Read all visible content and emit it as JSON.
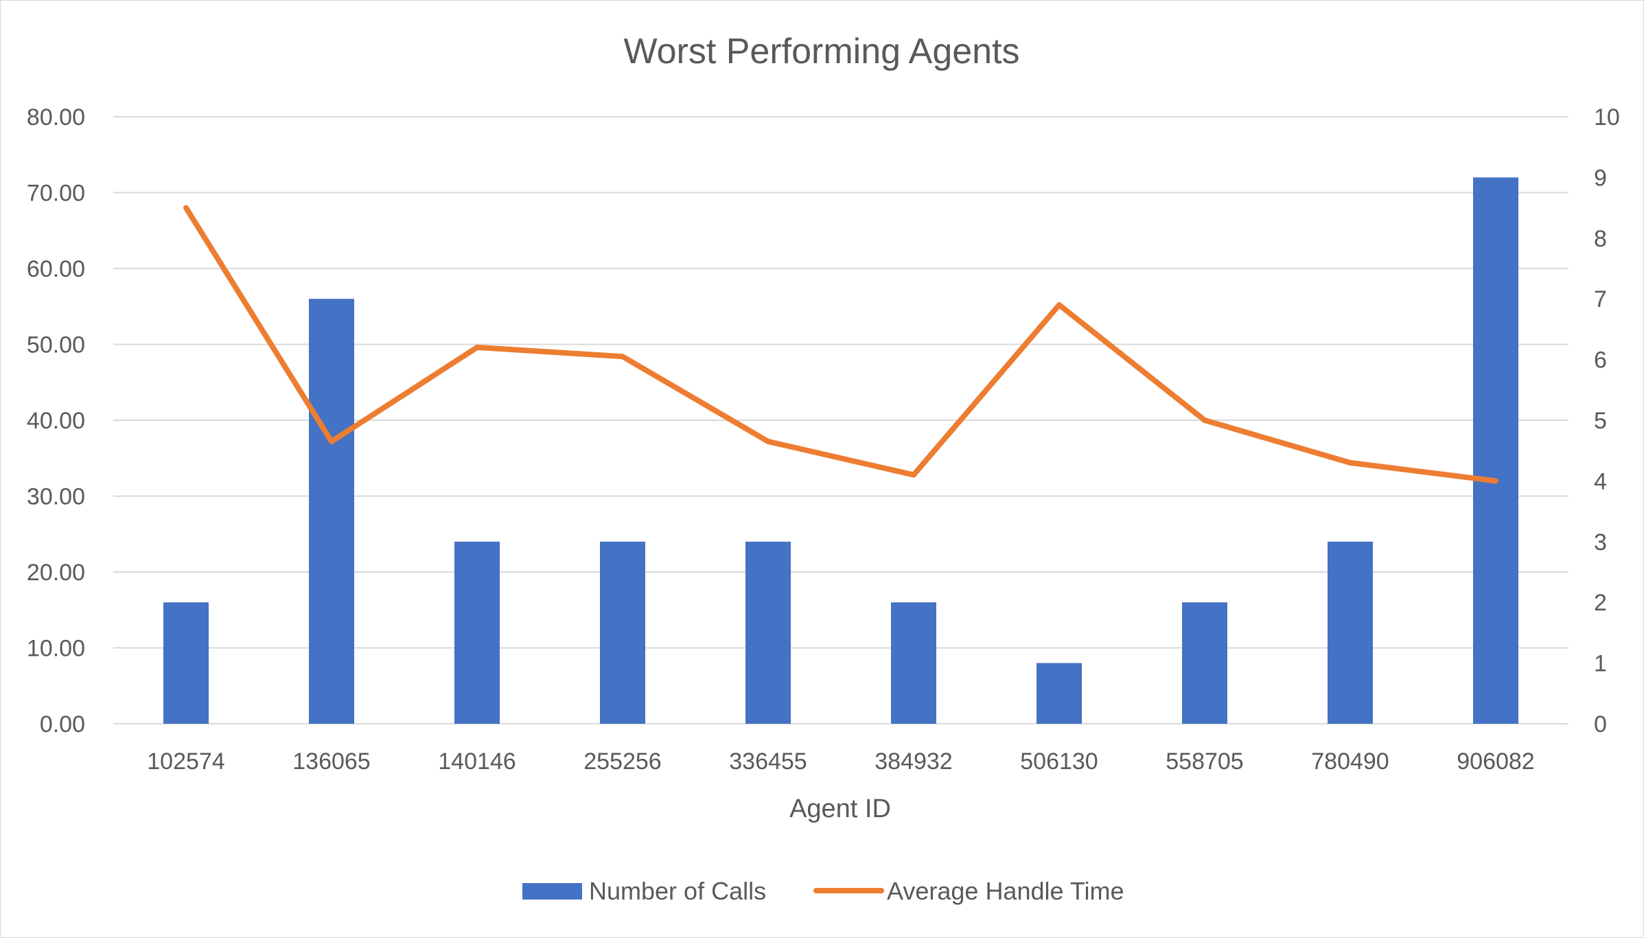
{
  "chart_data": {
    "type": "bar",
    "title": "Worst Performing Agents",
    "xlabel": "Agent ID",
    "ylabel": "",
    "y2label": "",
    "categories": [
      "102574",
      "136065",
      "140146",
      "255256",
      "336455",
      "384932",
      "506130",
      "558705",
      "780490",
      "906082"
    ],
    "series": [
      {
        "name": "Number of Calls",
        "type": "bar",
        "axis": "left",
        "color": "#4472C4",
        "values": [
          16,
          56,
          24,
          24,
          24,
          16,
          8,
          16,
          24,
          72
        ]
      },
      {
        "name": "Average Handle Time",
        "type": "line",
        "axis": "right",
        "color": "#ED7D31",
        "values": [
          8.5,
          4.65,
          6.2,
          6.05,
          4.65,
          4.1,
          6.9,
          5.0,
          4.3,
          4.0
        ]
      }
    ],
    "ylim": [
      0,
      80
    ],
    "y2lim": [
      0,
      10
    ],
    "yticks": [
      "0.00",
      "10.00",
      "20.00",
      "30.00",
      "40.00",
      "50.00",
      "60.00",
      "70.00",
      "80.00"
    ],
    "y2ticks": [
      "0",
      "1",
      "2",
      "3",
      "4",
      "5",
      "6",
      "7",
      "8",
      "9",
      "10"
    ],
    "grid": true,
    "legend_position": "bottom"
  }
}
